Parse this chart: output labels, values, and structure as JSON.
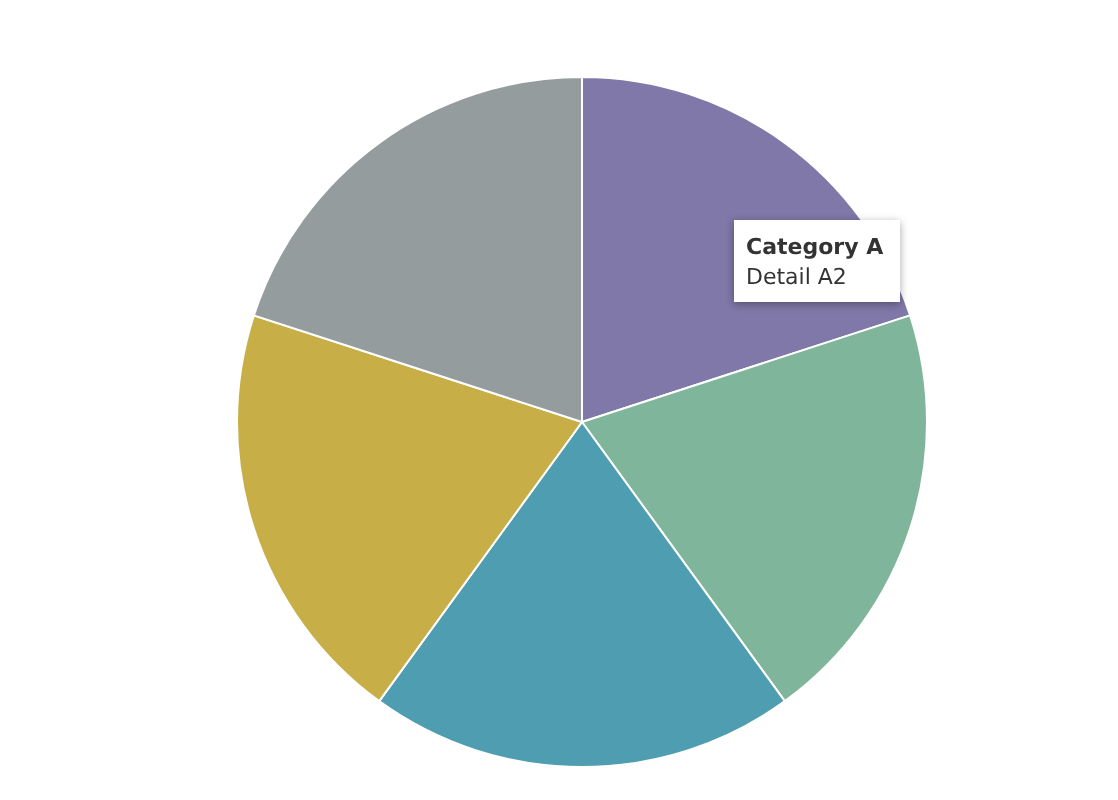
{
  "chart_data": {
    "type": "pie",
    "categories": [
      null,
      null,
      null,
      null,
      null
    ],
    "values": [
      20,
      20,
      20,
      20,
      20
    ],
    "colors": [
      "#7f78a8",
      "#7fb59a",
      "#4e9db0",
      "#c8ae47",
      "#959c9e"
    ],
    "legend": false,
    "annotations": [
      "Category A",
      "Detail A2"
    ]
  }
}
